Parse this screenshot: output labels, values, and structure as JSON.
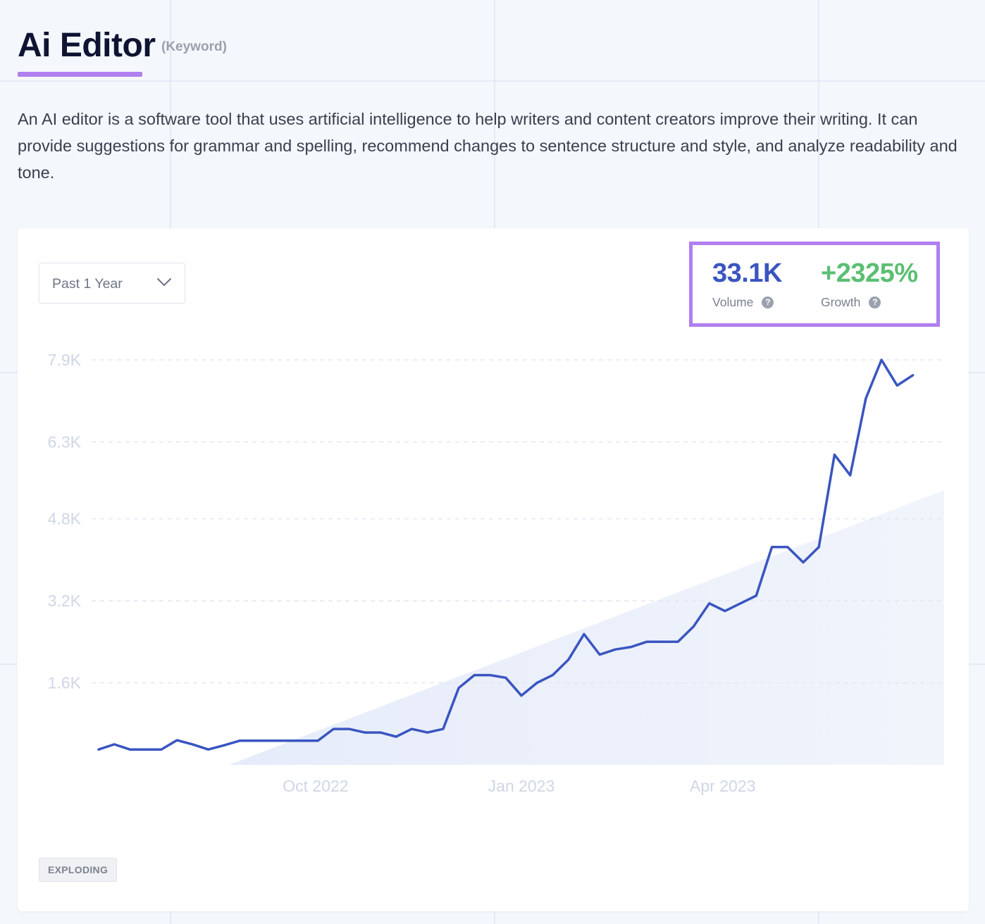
{
  "keyword": {
    "title": "Ai Editor",
    "type_label": "(Keyword)",
    "description": "An AI editor is a software tool that uses artificial intelligence to help writers and content creators improve their writing. It can provide suggestions for grammar and spelling, recommend changes to sentence structure and style, and analyze readability and tone."
  },
  "controls": {
    "range_label": "Past 1 Year"
  },
  "stats": {
    "volume": {
      "value": "33.1K",
      "label": "Volume"
    },
    "growth": {
      "value": "+2325%",
      "label": "Growth"
    }
  },
  "tag": "EXPLODING",
  "colors": {
    "accent_purple": "#b07ff0",
    "line_blue": "#3a55c0",
    "growth_green": "#5bbf72",
    "tick_text": "#cfd6e6"
  },
  "icons": {
    "dropdown": "chevron-down-icon",
    "help": "help-icon"
  },
  "chart_data": {
    "type": "line",
    "title": "",
    "xlabel": "",
    "ylabel": "",
    "ylim": [
      0,
      7900
    ],
    "yticks": [
      1600,
      3200,
      4800,
      6300,
      7900
    ],
    "ytick_labels": [
      "1.6K",
      "3.2K",
      "4.8K",
      "6.3K",
      "7.9K"
    ],
    "xticks": [
      "2022-10-01",
      "2023-01-01",
      "2023-04-01"
    ],
    "xtick_labels": [
      "Oct 2022",
      "Jan 2023",
      "Apr 2023"
    ],
    "xlim": [
      "2022-06-26",
      "2023-07-09"
    ],
    "grid": "horizontal dashed",
    "series": [
      {
        "values": [
          [
            "2022-06-26",
            300
          ],
          [
            "2022-07-03",
            400
          ],
          [
            "2022-07-10",
            300
          ],
          [
            "2022-07-17",
            300
          ],
          [
            "2022-07-24",
            300
          ],
          [
            "2022-07-31",
            480
          ],
          [
            "2022-08-07",
            400
          ],
          [
            "2022-08-14",
            300
          ],
          [
            "2022-08-21",
            380
          ],
          [
            "2022-08-28",
            470
          ],
          [
            "2022-09-04",
            470
          ],
          [
            "2022-09-11",
            470
          ],
          [
            "2022-09-18",
            470
          ],
          [
            "2022-09-25",
            470
          ],
          [
            "2022-10-02",
            470
          ],
          [
            "2022-10-09",
            700
          ],
          [
            "2022-10-16",
            700
          ],
          [
            "2022-10-23",
            630
          ],
          [
            "2022-10-30",
            630
          ],
          [
            "2022-11-06",
            550
          ],
          [
            "2022-11-13",
            700
          ],
          [
            "2022-11-20",
            630
          ],
          [
            "2022-11-27",
            700
          ],
          [
            "2022-12-04",
            1500
          ],
          [
            "2022-12-11",
            1750
          ],
          [
            "2022-12-18",
            1750
          ],
          [
            "2022-12-25",
            1700
          ],
          [
            "2023-01-01",
            1350
          ],
          [
            "2023-01-08",
            1600
          ],
          [
            "2023-01-15",
            1750
          ],
          [
            "2023-01-22",
            2050
          ],
          [
            "2023-01-29",
            2550
          ],
          [
            "2023-02-05",
            2150
          ],
          [
            "2023-02-12",
            2250
          ],
          [
            "2023-02-19",
            2300
          ],
          [
            "2023-02-26",
            2400
          ],
          [
            "2023-03-05",
            2400
          ],
          [
            "2023-03-12",
            2400
          ],
          [
            "2023-03-19",
            2700
          ],
          [
            "2023-03-26",
            3150
          ],
          [
            "2023-04-02",
            3000
          ],
          [
            "2023-04-09",
            3150
          ],
          [
            "2023-04-16",
            3300
          ],
          [
            "2023-04-23",
            4250
          ],
          [
            "2023-04-30",
            4250
          ],
          [
            "2023-05-07",
            3950
          ],
          [
            "2023-05-14",
            4250
          ],
          [
            "2023-05-21",
            6050
          ],
          [
            "2023-05-28",
            5650
          ],
          [
            "2023-06-04",
            7150
          ],
          [
            "2023-06-11",
            7900
          ],
          [
            "2023-06-18",
            7400
          ],
          [
            "2023-06-25",
            7600
          ]
        ]
      }
    ]
  }
}
